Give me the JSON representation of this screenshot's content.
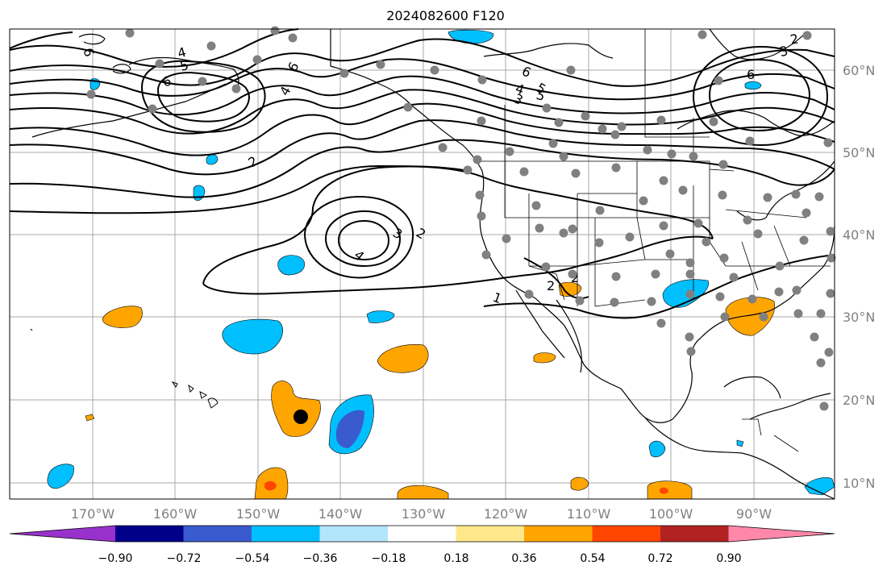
{
  "title": "2024082600 F120",
  "longitude_labels": [
    "170°W",
    "160°W",
    "150°W",
    "140°W",
    "130°W",
    "120°W",
    "110°W",
    "100°W",
    "90°W"
  ],
  "latitude_labels": [
    "60°N",
    "50°N",
    "40°N",
    "30°N",
    "20°N",
    "10°N"
  ],
  "colorbar": {
    "tick_labels": [
      "−0.90",
      "−0.72",
      "−0.54",
      "−0.36",
      "−0.18",
      "0.18",
      "0.36",
      "0.54",
      "0.72",
      "0.90"
    ],
    "colors": [
      "#9932cc",
      "#00008b",
      "#3a5bd0",
      "#00bfff",
      "#b3e5fc",
      "#ffffff",
      "#ffe88a",
      "#ffa500",
      "#ff4500",
      "#b22222",
      "#ff88aa"
    ]
  },
  "contour_labels": [
    "1",
    "2",
    "2",
    "3",
    "4",
    "4",
    "5",
    "6",
    "6",
    "2",
    "3",
    "4",
    "5",
    "6",
    "6",
    "4",
    "5",
    "6",
    "3",
    "2",
    "2"
  ],
  "colors": {
    "land_line": "#000000",
    "grid": "#a0a0a0",
    "station": "#808080",
    "marker": "#000000"
  }
}
